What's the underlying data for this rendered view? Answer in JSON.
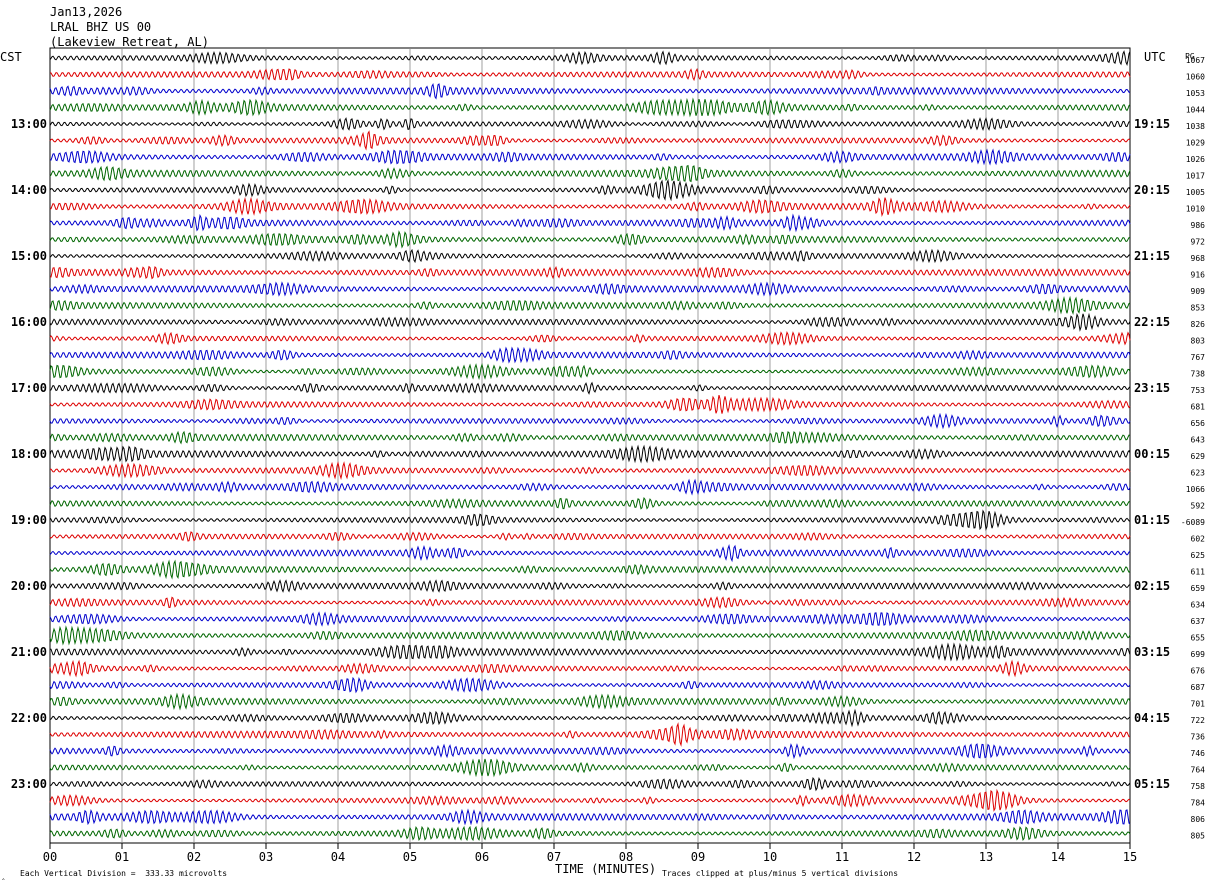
{
  "header": {
    "date": "Jan13,2026",
    "station": "LRAL BHZ US 00",
    "location": "(Lakeview Retreat, AL)"
  },
  "left_timezone": "CST",
  "right_timezone": "UTC",
  "right_header_code": "PG",
  "footer": {
    "left_note": "Each Vertical Division =  333.33 microvolts",
    "right_note": "Traces clipped at plus/minus 5 vertical divisions"
  },
  "colors": [
    "#000000",
    "#dd0000",
    "#0000cc",
    "#006600"
  ],
  "chart_data": {
    "type": "line",
    "title": "",
    "xlabel": "TIME (MINUTES)",
    "ylabel": "",
    "x_ticks": [
      "00",
      "01",
      "02",
      "03",
      "04",
      "05",
      "06",
      "07",
      "08",
      "09",
      "10",
      "11",
      "12",
      "13",
      "14",
      "15"
    ],
    "xlim": [
      0,
      15
    ],
    "grid": "vertical lines each minute",
    "rows_per_hour": 4,
    "num_rows": 48,
    "left_hour_labels": [
      "13:00",
      "14:00",
      "15:00",
      "16:00",
      "17:00",
      "18:00",
      "19:00",
      "20:00",
      "21:00",
      "22:00",
      "23:00"
    ],
    "right_hour_labels": [
      "19:15",
      "20:15",
      "21:15",
      "22:15",
      "23:15",
      "00:15",
      "01:15",
      "02:15",
      "03:15",
      "04:15",
      "05:15"
    ],
    "right_values": [
      "1067",
      "1060",
      "1053",
      "1044",
      "1038",
      "1029",
      "1026",
      "1017",
      "1005",
      "1010",
      "986",
      "972",
      "968",
      "916",
      "909",
      "853",
      "826",
      "803",
      "767",
      "738",
      "753",
      "681",
      "656",
      "643",
      "629",
      "623",
      "1066",
      "592",
      "-6089",
      "602",
      "625",
      "611",
      "659",
      "634",
      "637",
      "655",
      "699",
      "676",
      "687",
      "701",
      "722",
      "736",
      "746",
      "764",
      "758",
      "784",
      "806",
      "805"
    ]
  }
}
